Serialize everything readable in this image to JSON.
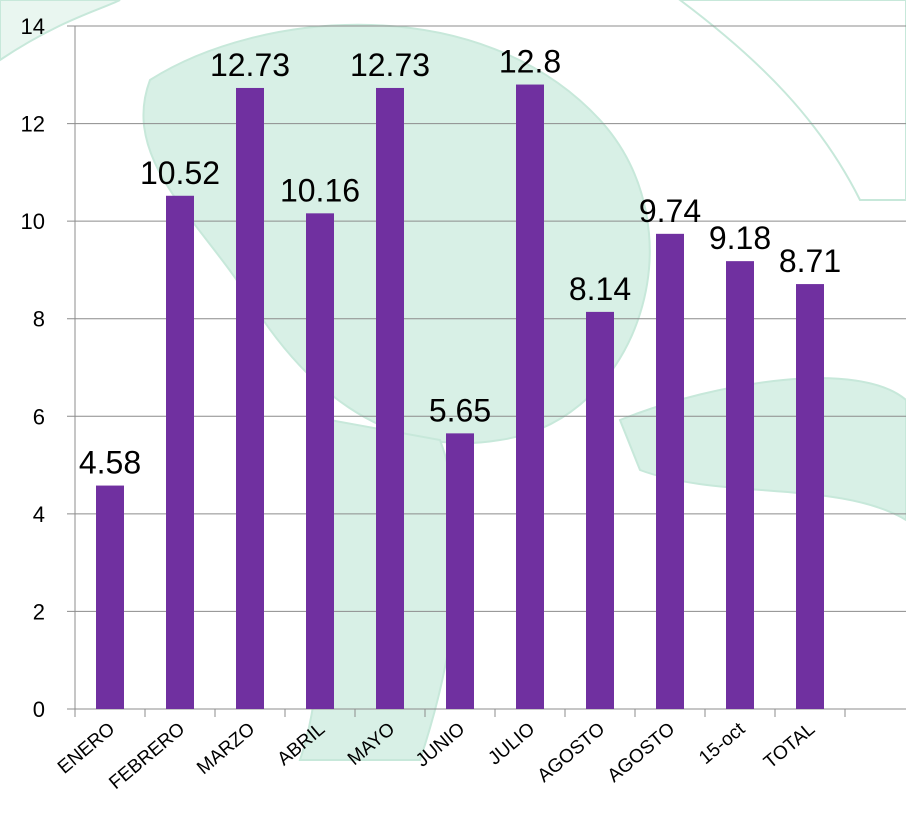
{
  "chart_data": {
    "type": "bar",
    "categories": [
      "ENERO",
      "FEBRERO",
      "MARZO",
      "ABRIL",
      "MAYO",
      "JUNIO",
      "JULIO",
      "AGOSTO",
      "AGOSTO",
      "15-oct",
      "TOTAL"
    ],
    "values": [
      4.58,
      10.52,
      12.73,
      10.16,
      12.73,
      5.65,
      12.8,
      8.14,
      9.74,
      9.18,
      8.71
    ],
    "color": "#7030a0",
    "ylim": [
      0,
      14
    ],
    "yticks": [
      0,
      2,
      4,
      6,
      8,
      10,
      12,
      14
    ],
    "grid": true
  }
}
